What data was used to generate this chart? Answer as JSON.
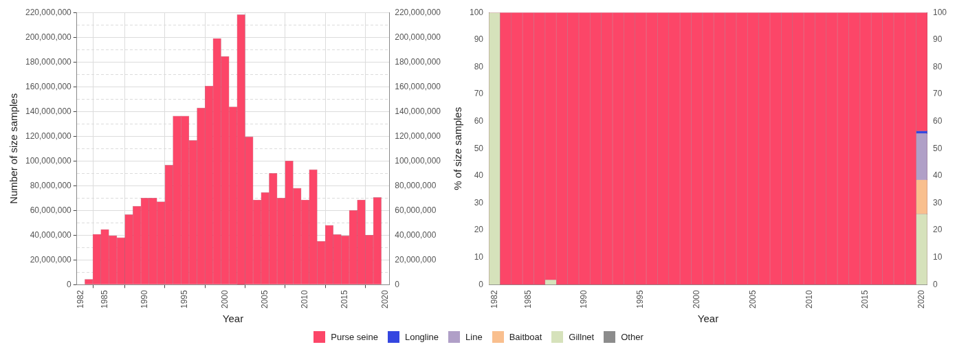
{
  "chart_data": [
    {
      "type": "bar",
      "xlabel": "Year",
      "ylabel": "Number of size samples",
      "x": [
        1983,
        1984,
        1985,
        1986,
        1987,
        1988,
        1989,
        1990,
        1991,
        1992,
        1993,
        1994,
        1995,
        1996,
        1997,
        1998,
        1999,
        2000,
        2001,
        2002,
        2003,
        2004,
        2005,
        2006,
        2007,
        2008,
        2009,
        2010,
        2011,
        2012,
        2013,
        2014,
        2015,
        2016,
        2017,
        2018,
        2019
      ],
      "series": [
        {
          "color": "#fc4668",
          "values": [
            4300000,
            40700000,
            44600000,
            39600000,
            38000000,
            56600000,
            63400000,
            70000000,
            70000000,
            67000000,
            96600000,
            136300000,
            136300000,
            116600000,
            142800000,
            160500000,
            199000000,
            184500000,
            143700000,
            218200000,
            119500000,
            68500000,
            74500000,
            90000000,
            70000000,
            100000000,
            78000000,
            68500000,
            93000000,
            35000000,
            48000000,
            40500000,
            39500000,
            60000000,
            68500000,
            40000000,
            70500000
          ]
        }
      ],
      "xlim": [
        1981.5,
        2020.5
      ],
      "xticks": [
        1982,
        1985,
        1990,
        1995,
        2000,
        2005,
        2010,
        2015,
        2020
      ],
      "ylim": [
        0,
        220000000
      ],
      "yticks": [
        0,
        {
          "value": 10000000,
          "label": null
        },
        {
          "value": 20000000,
          "label": "20,000,000"
        },
        {
          "value": 30000000,
          "label": null
        },
        {
          "value": 40000000,
          "label": "40,000,000"
        },
        {
          "value": 50000000,
          "label": null
        },
        {
          "value": 60000000,
          "label": "60,000,000"
        },
        {
          "value": 70000000,
          "label": null
        },
        {
          "value": 80000000,
          "label": "80,000,000"
        },
        {
          "value": 90000000,
          "label": null
        },
        {
          "value": 100000000,
          "label": "100,000,000"
        },
        {
          "value": 110000000,
          "label": null
        },
        {
          "value": 120000000,
          "label": "120,000,000"
        },
        {
          "value": 130000000,
          "label": null
        },
        {
          "value": 140000000,
          "label": "140,000,000"
        },
        {
          "value": 150000000,
          "label": null
        },
        {
          "value": 160000000,
          "label": "160,000,000"
        },
        {
          "value": 170000000,
          "label": null
        },
        {
          "value": 180000000,
          "label": "180,000,000"
        },
        {
          "value": 190000000,
          "label": null
        },
        {
          "value": 200000000,
          "label": "200,000,000"
        },
        {
          "value": 210000000,
          "label": null
        },
        {
          "value": 220000000,
          "label": "220,000,000"
        }
      ],
      "y2lim": [
        0,
        220000000
      ],
      "y2ticks": [
        0,
        {
          "value": 20000000,
          "label": "20,000,000"
        },
        {
          "value": 40000000,
          "label": "40,000,000"
        },
        {
          "value": 60000000,
          "label": "60,000,000"
        },
        {
          "value": 80000000,
          "label": "80,000,000"
        },
        {
          "value": 100000000,
          "label": "100,000,000"
        },
        {
          "value": 120000000,
          "label": "120,000,000"
        },
        {
          "value": 140000000,
          "label": "140,000,000"
        },
        {
          "value": 160000000,
          "label": "160,000,000"
        },
        {
          "value": 180000000,
          "label": "180,000,000"
        },
        {
          "value": 200000000,
          "label": "200,000,000"
        },
        {
          "value": 220000000,
          "label": "220,000,000"
        }
      ],
      "grid": true
    },
    {
      "type": "bar",
      "stacked": true,
      "xlabel": "Year",
      "ylabel": "% of size samples",
      "legend": "bottom",
      "x": [
        1982,
        1983,
        1984,
        1985,
        1986,
        1987,
        1988,
        1989,
        1990,
        1991,
        1992,
        1993,
        1994,
        1995,
        1996,
        1997,
        1998,
        1999,
        2000,
        2001,
        2002,
        2003,
        2004,
        2005,
        2006,
        2007,
        2008,
        2009,
        2010,
        2011,
        2012,
        2013,
        2014,
        2015,
        2016,
        2017,
        2018,
        2019,
        2020
      ],
      "series": [
        {
          "name": "Other",
          "color": "#8c8c8c",
          "values": [
            0,
            0,
            0,
            0,
            0,
            0,
            0,
            0,
            0,
            0,
            0,
            0,
            0,
            0,
            0,
            0,
            0,
            0,
            0,
            0,
            0,
            0,
            0,
            0,
            0,
            0,
            0,
            0,
            0,
            0,
            0,
            0,
            0,
            0,
            0,
            0,
            0,
            0,
            0
          ]
        },
        {
          "name": "Gillnet",
          "color": "#d6e2bb",
          "values": [
            100,
            0,
            0,
            0,
            0,
            1.8,
            0,
            0,
            0,
            0,
            0,
            0,
            0,
            0,
            0,
            0,
            0,
            0,
            0,
            0,
            0,
            0,
            0,
            0,
            0,
            0,
            0,
            0,
            0,
            0,
            0,
            0,
            0,
            0,
            0,
            0,
            0,
            0,
            26
          ]
        },
        {
          "name": "Baitboat",
          "color": "#f9bf8e",
          "values": [
            0,
            0,
            0,
            0,
            0,
            0,
            0,
            0,
            0,
            0,
            0,
            0,
            0,
            0,
            0,
            0,
            0,
            0,
            0,
            0,
            0,
            0,
            0,
            0,
            0,
            0,
            0,
            0,
            0,
            0,
            0,
            0,
            0,
            0,
            0,
            0,
            0,
            0,
            12.5
          ]
        },
        {
          "name": "Line",
          "color": "#b09fc7",
          "values": [
            0,
            0,
            0,
            0,
            0,
            0,
            0,
            0,
            0,
            0,
            0,
            0,
            0,
            0,
            0,
            0,
            0,
            0,
            0,
            0,
            0,
            0,
            0,
            0,
            0,
            0,
            0,
            0,
            0,
            0,
            0,
            0,
            0,
            0,
            0,
            0,
            0,
            0,
            17
          ]
        },
        {
          "name": "Longline",
          "color": "#3446e0",
          "values": [
            0,
            0,
            0,
            0,
            0,
            0,
            0,
            0,
            0,
            0,
            0,
            0,
            0,
            0,
            0,
            0,
            0,
            0,
            0,
            0,
            0,
            0,
            0,
            0,
            0,
            0,
            0,
            0,
            0,
            0,
            0,
            0,
            0,
            0,
            0,
            0,
            0,
            0,
            1
          ]
        },
        {
          "name": "Purse seine",
          "color": "#fc4668",
          "values": [
            0,
            100,
            100,
            100,
            100,
            98.2,
            100,
            100,
            100,
            100,
            100,
            100,
            100,
            100,
            100,
            100,
            100,
            100,
            100,
            100,
            100,
            100,
            100,
            100,
            100,
            100,
            100,
            100,
            100,
            100,
            100,
            100,
            100,
            100,
            100,
            100,
            100,
            100,
            43.5
          ]
        }
      ],
      "xlim": [
        1981.5,
        2020.5
      ],
      "xticks": [
        1982,
        1985,
        1990,
        1995,
        2000,
        2005,
        2010,
        2015,
        2020
      ],
      "ylim": [
        0,
        100
      ],
      "yticks": [
        0,
        10,
        20,
        30,
        40,
        50,
        60,
        70,
        80,
        90,
        100
      ],
      "y2lim": [
        0,
        100
      ],
      "y2ticks": [
        0,
        10,
        20,
        30,
        40,
        50,
        60,
        70,
        80,
        90,
        100
      ]
    }
  ]
}
